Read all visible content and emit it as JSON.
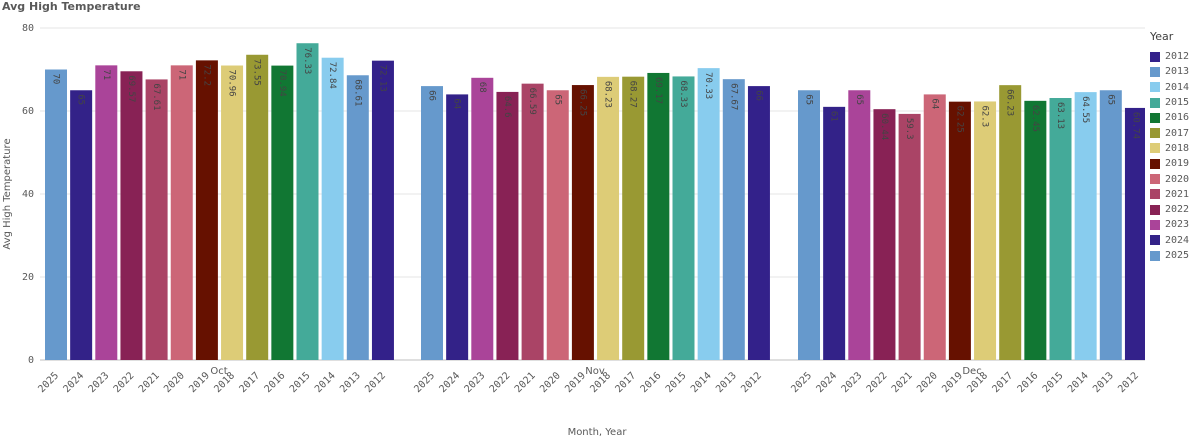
{
  "chart_data": {
    "type": "bar",
    "title": "Avg High Temperature",
    "xlabel": "Month, Year",
    "ylabel": "Avg High Temperature",
    "ylim": [
      0,
      80
    ],
    "yticks": [
      0,
      20,
      40,
      60,
      80
    ],
    "legend_title": "Year",
    "legend_position": "right",
    "grid": true,
    "groups": [
      {
        "month": "Oct",
        "years": [
          "2025",
          "2024",
          "2023",
          "2022",
          "2021",
          "2020",
          "2019",
          "2018",
          "2017",
          "2016",
          "2015",
          "2014",
          "2013",
          "2012"
        ],
        "values": [
          70,
          65,
          71,
          69.57,
          67.61,
          71,
          72.2,
          70.96,
          73.55,
          70.94,
          76.33,
          72.84,
          68.61,
          72.13
        ],
        "labels": [
          "70",
          "65",
          "71",
          "69.57",
          "67.61",
          "71",
          "72.2",
          "70.96",
          "73.55",
          "70.94",
          "76.33",
          "72.84",
          "68.61",
          "72.13"
        ]
      },
      {
        "month": "Nov",
        "years": [
          "2025",
          "2024",
          "2023",
          "2022",
          "2021",
          "2020",
          "2019",
          "2018",
          "2017",
          "2016",
          "2015",
          "2014",
          "2013",
          "2012"
        ],
        "values": [
          66,
          64,
          68,
          64.6,
          66.59,
          65,
          66.25,
          68.23,
          68.27,
          69.17,
          68.33,
          70.33,
          67.67,
          66
        ],
        "labels": [
          "66",
          "64",
          "68",
          "64.6",
          "66.59",
          "65",
          "66.25",
          "68.23",
          "68.27",
          "69.17",
          "68.33",
          "70.33",
          "67.67",
          "66"
        ]
      },
      {
        "month": "Dec",
        "years": [
          "2025",
          "2024",
          "2023",
          "2022",
          "2021",
          "2020",
          "2019",
          "2018",
          "2017",
          "2016",
          "2015",
          "2014",
          "2013",
          "2012"
        ],
        "values": [
          65,
          61,
          65,
          60.44,
          59.3,
          64,
          62.25,
          62.3,
          66.23,
          62.45,
          63.13,
          64.55,
          65,
          60.74
        ],
        "labels": [
          "65",
          "61",
          "65",
          "60.44",
          "59.3",
          "64",
          "62.25",
          "62.3",
          "66.23",
          "62.45",
          "63.13",
          "64.55",
          "65",
          "60.74"
        ]
      }
    ],
    "year_colors": {
      "2012": "#33218a",
      "2013": "#6699cc",
      "2014": "#88ccee",
      "2015": "#44aa99",
      "2016": "#117733",
      "2017": "#999933",
      "2018": "#ddcc77",
      "2019": "#661100",
      "2020": "#cc6677",
      "2021": "#aa4466",
      "2022": "#882255",
      "2023": "#aa4499",
      "2024": "#332288",
      "2025": "#6699cc"
    },
    "legend": [
      "2012",
      "2013",
      "2014",
      "2015",
      "2016",
      "2017",
      "2018",
      "2019",
      "2020",
      "2021",
      "2022",
      "2023",
      "2024",
      "2025"
    ]
  }
}
